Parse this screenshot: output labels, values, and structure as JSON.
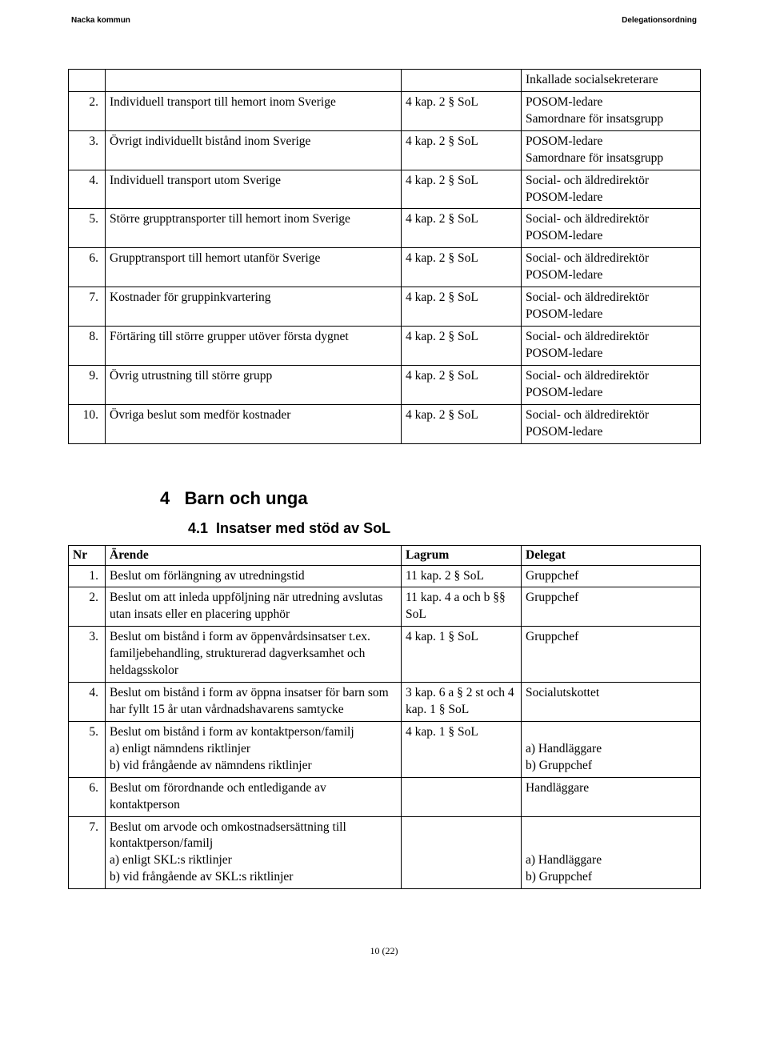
{
  "header": {
    "left": "Nacka kommun",
    "right": "Delegationsordning"
  },
  "table1": {
    "top_row_col4": "Inkallade socialsekreterare",
    "rows": [
      {
        "nr": "2.",
        "arende": "Individuell transport till hemort inom Sverige",
        "lagrum": "4 kap. 2 § SoL",
        "delegat": "POSOM-ledare\nSamordnare för insatsgrupp"
      },
      {
        "nr": "3.",
        "arende": "Övrigt individuellt bistånd inom Sverige",
        "lagrum": "4 kap. 2 § SoL",
        "delegat": "POSOM-ledare\nSamordnare för insatsgrupp"
      },
      {
        "nr": "4.",
        "arende": "Individuell transport utom Sverige",
        "lagrum": "4 kap. 2 § SoL",
        "delegat": "Social- och äldredirektör\nPOSOM-ledare"
      },
      {
        "nr": "5.",
        "arende": "Större grupptransporter till hemort inom Sverige",
        "lagrum": "4 kap. 2 § SoL",
        "delegat": "Social- och äldredirektör\nPOSOM-ledare"
      },
      {
        "nr": "6.",
        "arende": "Grupptransport till hemort utanför Sverige",
        "lagrum": "4 kap. 2 § SoL",
        "delegat": "Social- och äldredirektör\nPOSOM-ledare"
      },
      {
        "nr": "7.",
        "arende": "Kostnader för gruppinkvartering",
        "lagrum": "4 kap. 2 § SoL",
        "delegat": "Social- och äldredirektör\nPOSOM-ledare"
      },
      {
        "nr": "8.",
        "arende": "Förtäring till större grupper utöver första dygnet",
        "lagrum": "4 kap. 2 § SoL",
        "delegat": "Social- och äldredirektör\nPOSOM-ledare"
      },
      {
        "nr": "9.",
        "arende": "Övrig utrustning till större grupp",
        "lagrum": "4 kap. 2 § SoL",
        "delegat": "Social- och äldredirektör\nPOSOM-ledare"
      },
      {
        "nr": "10.",
        "arende": "Övriga beslut som medför kostnader",
        "lagrum": "4 kap. 2 § SoL",
        "delegat": "Social- och äldredirektör\nPOSOM-ledare"
      }
    ]
  },
  "section": {
    "number": "4",
    "title": "Barn och unga"
  },
  "subsection": {
    "number": "4.1",
    "title": "Insatser med stöd av SoL"
  },
  "table2": {
    "headers": {
      "nr": "Nr",
      "arende": "Ärende",
      "lagrum": "Lagrum",
      "delegat": "Delegat"
    },
    "rows": [
      {
        "nr": "1.",
        "arende": "Beslut om förlängning av utredningstid",
        "lagrum": "11 kap. 2 § SoL",
        "delegat": "Gruppchef"
      },
      {
        "nr": "2.",
        "arende": "Beslut om att inleda uppföljning när utredning avslutas utan insats eller en placering upphör",
        "lagrum": "11 kap. 4 a och b §§ SoL",
        "delegat": "Gruppchef"
      },
      {
        "nr": "3.",
        "arende": "Beslut om bistånd i form av öppenvårdsinsatser t.ex. familjebehandling, strukturerad dagverksamhet och heldagsskolor",
        "lagrum": "4 kap. 1 § SoL",
        "delegat": "Gruppchef"
      },
      {
        "nr": "4.",
        "arende": "Beslut om bistånd i form av öppna insatser för barn som har fyllt 15 år utan vårdnadshavarens samtycke",
        "lagrum": "3 kap. 6 a § 2 st och 4 kap. 1 § SoL",
        "delegat": "Socialutskottet"
      },
      {
        "nr": "5.",
        "arende": "Beslut om bistånd i form av kontaktperson/familj\na) enligt nämndens riktlinjer\nb) vid frångående av nämndens riktlinjer",
        "lagrum": "4 kap. 1 § SoL",
        "delegat": "\na) Handläggare\nb) Gruppchef"
      },
      {
        "nr": "6.",
        "arende": "Beslut om förordnande och entledigande av kontaktperson",
        "lagrum": "",
        "delegat": "Handläggare"
      },
      {
        "nr": "7.",
        "arende": "Beslut om arvode och omkostnadsersättning till kontaktperson/familj\na) enligt SKL:s riktlinjer\nb) vid frångående av SKL:s riktlinjer",
        "lagrum": "",
        "delegat": "\n\na) Handläggare\nb) Gruppchef"
      }
    ]
  },
  "footer": "10 (22)"
}
